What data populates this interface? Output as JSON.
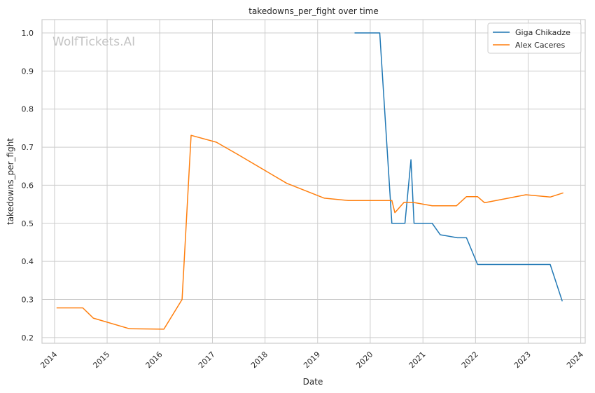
{
  "chart_data": {
    "type": "line",
    "title": "takedowns_per_fight over time",
    "xlabel": "Date",
    "ylabel": "takedowns_per_fight",
    "watermark": "WolfTickets.AI",
    "x_ticks": [
      "2014",
      "2015",
      "2016",
      "2017",
      "2018",
      "2019",
      "2020",
      "2021",
      "2022",
      "2023",
      "2024"
    ],
    "y_ticks": [
      "0.2",
      "0.3",
      "0.4",
      "0.5",
      "0.6",
      "0.7",
      "0.8",
      "0.9",
      "1.0"
    ],
    "xlim": [
      "2013-10-06",
      "2024-02-01"
    ],
    "ylim": [
      0.185,
      1.035
    ],
    "grid": true,
    "legend_position": "top-right",
    "colors": {
      "Giga Chikadze": "#1f77b4",
      "Alex Caceres": "#ff7f0e",
      "grid": "#cccccc"
    },
    "series": [
      {
        "name": "Giga Chikadze",
        "x": [
          "2019-09-14",
          "2020-03-07",
          "2020-05-30",
          "2020-08-29",
          "2020-10-10",
          "2020-10-31",
          "2021-03-06",
          "2021-05-01",
          "2021-08-28",
          "2021-10-30",
          "2022-01-15",
          "2022-12-10",
          "2023-06-03",
          "2023-08-26"
        ],
        "y": [
          1.0,
          1.0,
          0.5,
          0.5,
          0.667,
          0.5,
          0.5,
          0.47,
          0.462,
          0.462,
          0.392,
          0.392,
          0.392,
          0.295
        ]
      },
      {
        "name": "Alex Caceres",
        "x": [
          "2014-01-15",
          "2014-07-16",
          "2014-09-27",
          "2015-06-06",
          "2016-01-30",
          "2016-06-04",
          "2016-08-06",
          "2017-01-28",
          "2017-06-25",
          "2018-06-01",
          "2019-02-17",
          "2019-08-03",
          "2020-05-30",
          "2020-06-20",
          "2020-08-22",
          "2020-11-07",
          "2021-03-06",
          "2021-08-21",
          "2021-10-30",
          "2022-01-15",
          "2022-03-05",
          "2022-12-17",
          "2023-06-03",
          "2023-09-02"
        ],
        "y": [
          0.278,
          0.278,
          0.251,
          0.223,
          0.222,
          0.3,
          0.731,
          0.713,
          0.681,
          0.605,
          0.566,
          0.56,
          0.56,
          0.528,
          0.555,
          0.554,
          0.546,
          0.546,
          0.57,
          0.57,
          0.554,
          0.575,
          0.569,
          0.58
        ]
      }
    ]
  }
}
